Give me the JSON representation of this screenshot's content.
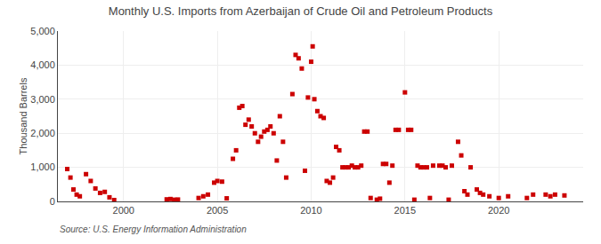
{
  "chart_data": {
    "type": "scatter",
    "title": "Monthly U.S. Imports from Azerbaijan of Crude Oil and Petroleum Products",
    "ylabel": "Thousand Barrels",
    "annotations": [
      "Source: U.S. Energy Information Administration"
    ],
    "color": "#cc0000",
    "marker": "square",
    "grid": true,
    "xlim": [
      1996.5,
      2024.5
    ],
    "xticks": [
      2000,
      2005,
      2010,
      2015,
      2020
    ],
    "ylim": [
      0,
      5000
    ],
    "yticks": [
      0,
      {
        "value": 1000,
        "label": "1,000"
      },
      {
        "value": 2000,
        "label": "2,000"
      },
      {
        "value": 3000,
        "label": "3,000"
      },
      {
        "value": 4000,
        "label": "4,000"
      },
      {
        "value": 5000,
        "label": "5,000"
      }
    ],
    "x": [
      1997.0,
      1997.17,
      1997.33,
      1997.5,
      1997.67,
      1998.0,
      1998.25,
      1998.5,
      1998.75,
      1999.0,
      1999.25,
      1999.5,
      2002.3,
      2002.5,
      2002.7,
      2002.9,
      2004.0,
      2004.25,
      2004.5,
      2004.83,
      2005.0,
      2005.25,
      2005.5,
      2005.83,
      2006.0,
      2006.17,
      2006.33,
      2006.5,
      2006.67,
      2006.83,
      2007.0,
      2007.17,
      2007.33,
      2007.5,
      2007.67,
      2007.83,
      2008.0,
      2008.17,
      2008.33,
      2008.5,
      2008.67,
      2009.0,
      2009.17,
      2009.33,
      2009.5,
      2009.67,
      2009.83,
      2010.0,
      2010.08,
      2010.17,
      2010.33,
      2010.5,
      2010.67,
      2010.83,
      2011.0,
      2011.17,
      2011.33,
      2011.5,
      2011.67,
      2011.83,
      2012.0,
      2012.17,
      2012.33,
      2012.5,
      2012.67,
      2012.83,
      2013.0,
      2013.17,
      2013.5,
      2013.67,
      2013.83,
      2014.0,
      2014.17,
      2014.33,
      2014.5,
      2014.67,
      2015.0,
      2015.17,
      2015.33,
      2015.5,
      2015.67,
      2015.83,
      2016.0,
      2016.17,
      2016.33,
      2016.5,
      2016.83,
      2017.0,
      2017.17,
      2017.33,
      2017.5,
      2017.83,
      2018.0,
      2018.17,
      2018.33,
      2018.5,
      2018.83,
      2019.0,
      2019.17,
      2019.5,
      2020.0,
      2020.5,
      2021.5,
      2021.83,
      2022.5,
      2022.75,
      2023.0,
      2023.5
    ],
    "values": [
      950,
      700,
      350,
      200,
      150,
      800,
      600,
      380,
      250,
      280,
      120,
      40,
      60,
      70,
      50,
      55,
      100,
      150,
      200,
      550,
      600,
      580,
      90,
      1250,
      1500,
      2750,
      2800,
      2250,
      2400,
      2200,
      2000,
      1750,
      1900,
      2050,
      2100,
      2200,
      2000,
      1200,
      2500,
      1750,
      700,
      3150,
      4300,
      4200,
      3900,
      900,
      3050,
      4100,
      4550,
      3000,
      2650,
      2500,
      2450,
      600,
      550,
      700,
      1600,
      1500,
      1000,
      1000,
      1000,
      1050,
      1000,
      1000,
      1050,
      2050,
      2050,
      100,
      50,
      80,
      1100,
      1100,
      550,
      1050,
      2100,
      2100,
      3200,
      2100,
      2100,
      50,
      1050,
      1000,
      1000,
      1000,
      100,
      1050,
      1050,
      1050,
      1000,
      50,
      1050,
      1750,
      1350,
      300,
      200,
      1000,
      350,
      250,
      200,
      150,
      100,
      150,
      100,
      200,
      200,
      150,
      200,
      175
    ]
  }
}
